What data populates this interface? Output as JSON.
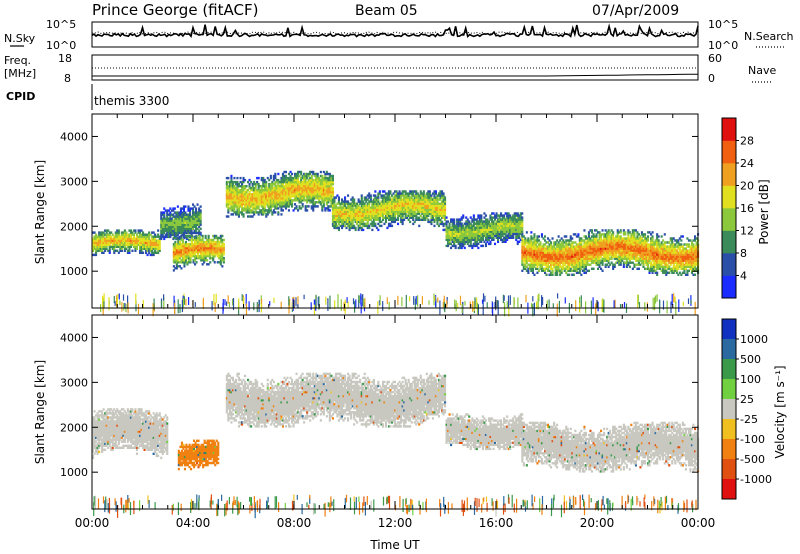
{
  "header": {
    "station": "Prince George (fitACF)",
    "beam": "Beam 05",
    "date": "07/Apr/2009"
  },
  "summary_panel": {
    "nsky_label": "N.Sky",
    "nsky_ticks": [
      "10^5",
      "10^0"
    ],
    "nsearch_label": "N.Search",
    "nsearch_ticks": [
      "10^5",
      "10^0"
    ],
    "freq_label_1": "Freq.",
    "freq_label_2": "[MHz]",
    "freq_ticks": [
      "18",
      "8"
    ],
    "nave_label": "Nave",
    "nave_ticks": [
      "60",
      "0"
    ],
    "cpid_label": "CPID",
    "cpid_value": "themis 3300"
  },
  "chart_data": [
    {
      "type": "heatmap",
      "name": "power",
      "ylabel": "Slant Range [km]",
      "ylim": [
        180,
        4500
      ],
      "yticks": [
        1000,
        2000,
        3000,
        4000
      ],
      "xlim": [
        0,
        24
      ],
      "colorbar": {
        "label": "Power [dB]",
        "ticks": [
          4,
          8,
          12,
          16,
          20,
          24,
          28
        ],
        "colors": [
          "#1a2cff",
          "#2a4fa8",
          "#3a8a5a",
          "#8cc83c",
          "#e0e020",
          "#f0a020",
          "#f06010",
          "#e01010"
        ]
      },
      "echo_bands": [
        {
          "t0": 0.0,
          "t1": 2.7,
          "r0": 1300,
          "r1": 1900,
          "peak": 22
        },
        {
          "t0": 2.7,
          "t1": 4.3,
          "r0": 1700,
          "r1": 2500,
          "peak": 14
        },
        {
          "t0": 3.2,
          "t1": 5.2,
          "r0": 1000,
          "r1": 1800,
          "peak": 24
        },
        {
          "t0": 5.3,
          "t1": 9.5,
          "r0": 2200,
          "r1": 3200,
          "peak": 22
        },
        {
          "t0": 9.5,
          "t1": 14.0,
          "r0": 1900,
          "r1": 2800,
          "peak": 20
        },
        {
          "t0": 14.0,
          "t1": 17.0,
          "r0": 1500,
          "r1": 2300,
          "peak": 16
        },
        {
          "t0": 17.0,
          "t1": 24.0,
          "r0": 900,
          "r1": 1900,
          "peak": 26
        }
      ]
    },
    {
      "type": "heatmap",
      "name": "velocity",
      "ylabel": "Slant Range [km]",
      "xlabel": "Time UT",
      "ylim": [
        180,
        4500
      ],
      "yticks": [
        1000,
        2000,
        3000,
        4000
      ],
      "xlim": [
        0,
        24
      ],
      "xticks": [
        "00:00",
        "04:00",
        "08:00",
        "12:00",
        "16:00",
        "20:00",
        "00:00"
      ],
      "colorbar": {
        "label": "Velocity [m s⁻¹]",
        "ticks": [
          1000,
          500,
          100,
          25,
          -25,
          -100,
          -500,
          -1000
        ],
        "colors": [
          "#1030c0",
          "#2a6aa0",
          "#3a9a4a",
          "#70d040",
          "#c8c8c0",
          "#f0c020",
          "#f08010",
          "#e05010",
          "#e01010"
        ]
      },
      "echo_bands": [
        {
          "t0": 0.0,
          "t1": 3.0,
          "r0": 1300,
          "r1": 2400,
          "v": 0
        },
        {
          "t0": 3.4,
          "t1": 5.0,
          "r0": 1050,
          "r1": 1700,
          "v": -400
        },
        {
          "t0": 5.3,
          "t1": 14.0,
          "r0": 2000,
          "r1": 3200,
          "v": 0
        },
        {
          "t0": 14.0,
          "t1": 17.0,
          "r0": 1500,
          "r1": 2300,
          "v": 0
        },
        {
          "t0": 17.0,
          "t1": 24.0,
          "r0": 1000,
          "r1": 2100,
          "v": 0
        }
      ]
    }
  ]
}
